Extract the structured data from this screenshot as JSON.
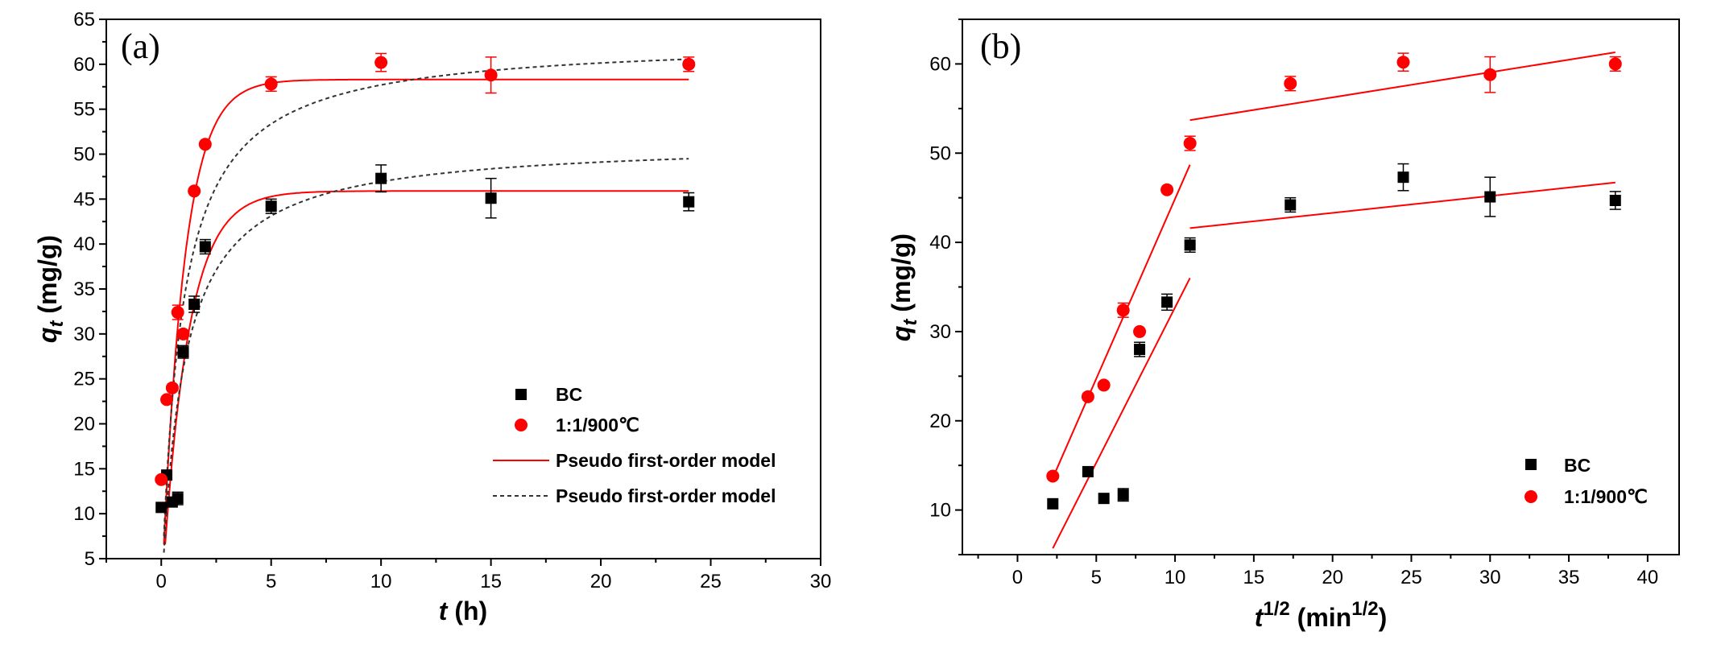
{
  "chart_data": [
    {
      "type": "scatter",
      "panel_label": "(a)",
      "xlabel_italic": "t",
      "xlabel_unit": " (h)",
      "ylabel_main": "q",
      "ylabel_sub": "t",
      "ylabel_unit": " (mg/g)",
      "xlim": [
        -2.5,
        30
      ],
      "ylim": [
        5,
        65
      ],
      "xticks": [
        0,
        5,
        10,
        15,
        20,
        25,
        30
      ],
      "yticks": [
        5,
        10,
        15,
        20,
        25,
        30,
        35,
        40,
        45,
        50,
        55,
        60,
        65
      ],
      "legend_position": "bottom-right",
      "series": [
        {
          "name": "BC",
          "marker": "square",
          "color": "#000000",
          "x": [
            0,
            0.25,
            0.5,
            0.75,
            1,
            1.5,
            2,
            5,
            10,
            15,
            24
          ],
          "y": [
            10.7,
            14.3,
            11.3,
            11.7,
            28,
            33.3,
            39.7,
            44.2,
            47.3,
            45.1,
            44.7
          ],
          "err": [
            0,
            0,
            0,
            0.7,
            0.7,
            0.9,
            0.8,
            0.8,
            1.5,
            2.2,
            1.0
          ]
        },
        {
          "name": "1:1/900℃",
          "marker": "circle",
          "color": "#ff0000",
          "x": [
            0,
            0.25,
            0.5,
            0.75,
            1,
            1.5,
            2,
            5,
            10,
            15,
            24
          ],
          "y": [
            13.8,
            22.7,
            24,
            32.4,
            30,
            45.9,
            51.1,
            57.8,
            60.2,
            58.8,
            60
          ],
          "err": [
            0,
            0,
            0,
            0.8,
            0,
            0,
            0,
            0.8,
            1.0,
            2.0,
            0.8
          ]
        }
      ],
      "fits": [
        {
          "name": "Pseudo first-order model",
          "style": "solid",
          "color": "#ff0000",
          "model": "pfo",
          "qe": 45.9,
          "k": 0.86,
          "range": [
            0,
            24
          ]
        },
        {
          "name": "Pseudo first-order model",
          "style": "solid",
          "color": "#ff0000",
          "model": "pfo",
          "qe": 58.3,
          "k": 1.0,
          "range": [
            0,
            24
          ]
        },
        {
          "name": "Pseudo first-order model",
          "style": "dashed",
          "color": "#333333",
          "model": "pso",
          "qe": 51.5,
          "k": 0.02,
          "range": [
            0,
            24
          ]
        },
        {
          "name": "Pseudo first-order model",
          "style": "dashed",
          "color": "#333333",
          "model": "pso",
          "qe": 62.8,
          "k": 0.018,
          "range": [
            0,
            24
          ]
        }
      ]
    },
    {
      "type": "scatter",
      "panel_label": "(b)",
      "xlabel_main": "t",
      "xlabel_sup": "1/2",
      "xlabel_unit_pre": " (min",
      "xlabel_unit_sup": "1/2",
      "xlabel_unit_post": ")",
      "ylabel_main": "q",
      "ylabel_sub": "t",
      "ylabel_unit": " (mg/g)",
      "xlim": [
        -3.5,
        42
      ],
      "ylim": [
        5,
        65
      ],
      "xticks": [
        0,
        5,
        10,
        15,
        20,
        25,
        30,
        35,
        40
      ],
      "yticks": [
        10,
        20,
        30,
        40,
        50,
        60
      ],
      "legend_position": "bottom-right",
      "series": [
        {
          "name": "BC",
          "marker": "square",
          "color": "#000000",
          "x": [
            2.24,
            4.47,
            5.48,
            6.71,
            7.75,
            9.49,
            10.95,
            17.32,
            24.49,
            30,
            37.95
          ],
          "y": [
            10.7,
            14.3,
            11.3,
            11.7,
            28,
            33.3,
            39.7,
            44.2,
            47.3,
            45.1,
            44.7
          ],
          "err": [
            0,
            0,
            0,
            0.7,
            0.8,
            0.9,
            0.8,
            0.8,
            1.5,
            2.2,
            1.0
          ]
        },
        {
          "name": "1:1/900℃",
          "marker": "circle",
          "color": "#ff0000",
          "x": [
            2.24,
            4.47,
            5.48,
            6.71,
            7.75,
            9.49,
            10.95,
            17.32,
            24.49,
            30,
            37.95
          ],
          "y": [
            13.8,
            22.7,
            24,
            32.4,
            30,
            45.9,
            51.1,
            57.8,
            60.2,
            58.8,
            60
          ],
          "err": [
            0,
            0,
            0,
            0.8,
            0,
            0,
            0.8,
            0.8,
            1.0,
            2.0,
            0.8
          ]
        }
      ],
      "fits": [
        {
          "style": "solid",
          "color": "#ff0000",
          "model": "line",
          "from": [
            2.24,
            13.6
          ],
          "to": [
            10.95,
            48.7
          ]
        },
        {
          "style": "solid",
          "color": "#ff0000",
          "model": "line",
          "from": [
            10.95,
            53.7
          ],
          "to": [
            37.95,
            61.3
          ]
        },
        {
          "style": "solid",
          "color": "#ff0000",
          "model": "line",
          "from": [
            2.24,
            5.7
          ],
          "to": [
            10.95,
            36
          ]
        },
        {
          "style": "solid",
          "color": "#ff0000",
          "model": "line",
          "from": [
            10.95,
            41.6
          ],
          "to": [
            37.95,
            46.7
          ]
        }
      ]
    }
  ]
}
